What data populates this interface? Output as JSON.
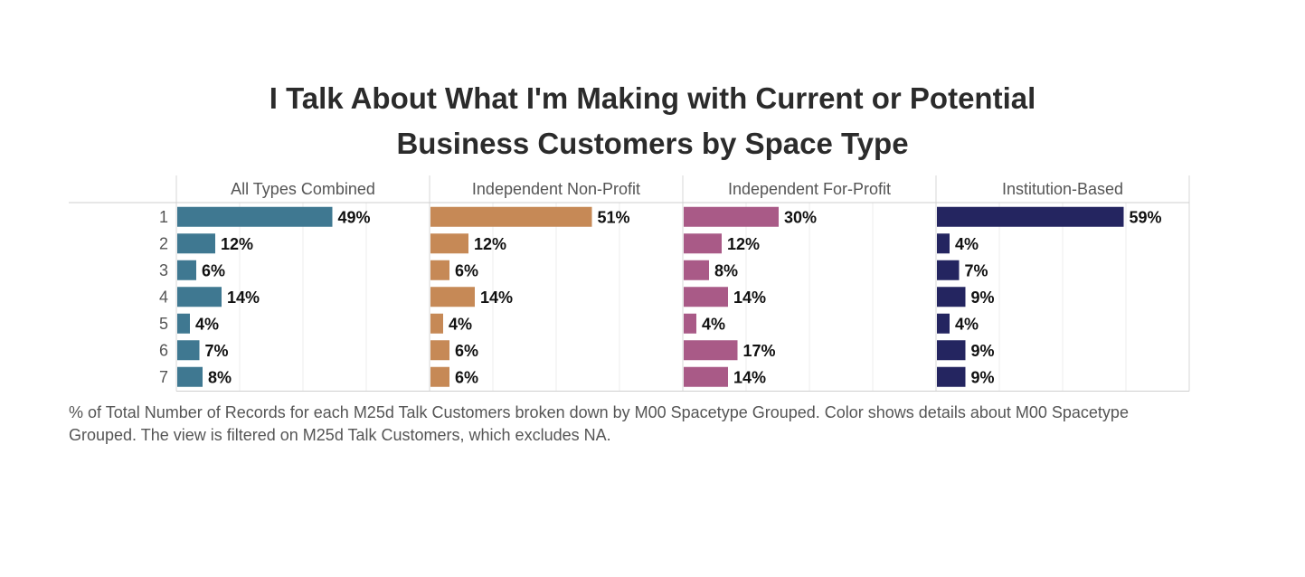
{
  "title_lines": [
    "I Talk About What I'm Making with Current or Potential",
    "Business Customers by Space Type"
  ],
  "footnote": "% of Total Number of Records for each M25d Talk Customers broken down by M00 Spacetype Grouped.  Color shows details about M00 Spacetype Grouped. The view is filtered on M25d Talk Customers, which excludes NA.",
  "chart_data": {
    "type": "bar",
    "orientation": "horizontal",
    "categories": [
      "1",
      "2",
      "3",
      "4",
      "5",
      "6",
      "7"
    ],
    "value_format": "percent",
    "xlim": [
      0,
      80
    ],
    "grid": true,
    "series": [
      {
        "name": "All Types Combined",
        "color": "#3f7891",
        "values": [
          49,
          12,
          6,
          14,
          4,
          7,
          8
        ]
      },
      {
        "name": "Independent Non-Profit",
        "color": "#c68956",
        "values": [
          51,
          12,
          6,
          14,
          4,
          6,
          6
        ]
      },
      {
        "name": "Independent For-Profit",
        "color": "#a95a87",
        "values": [
          30,
          12,
          8,
          14,
          4,
          17,
          14
        ]
      },
      {
        "name": "Institution-Based",
        "color": "#242560",
        "values": [
          59,
          4,
          7,
          9,
          4,
          9,
          9
        ]
      }
    ]
  }
}
